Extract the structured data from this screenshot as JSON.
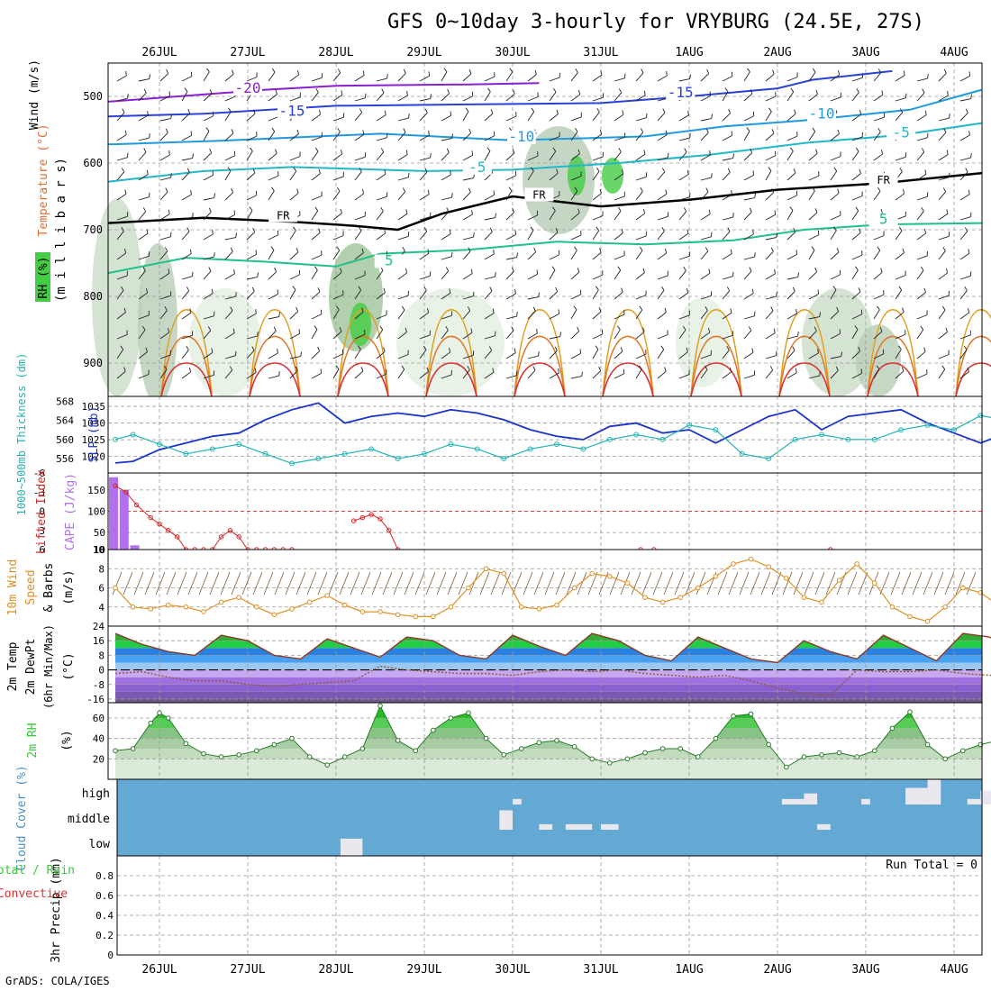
{
  "title": "GFS 0~10day 3-hourly for VRYBURG (24.5E, 27S)",
  "credit": "GrADS: COLA/IGES",
  "dates": [
    "26JUL",
    "27JUL",
    "28JUL",
    "29JUL",
    "30JUL",
    "31JUL",
    "1AUG",
    "2AUG",
    "3AUG",
    "4AUG"
  ],
  "colors": {
    "grid": "#9a9a9a",
    "slp": "#1a33cc",
    "thickness": "#22b3b3",
    "lifted": "#dd2222",
    "cape": "#b070f0",
    "wind10": "#e09020",
    "rh": "#33cc33",
    "cloud": "#64a8d4",
    "temp_warm": "#22aa22",
    "temp_cold": "#7040c0"
  },
  "chart_data": [
    {
      "panel": "upper-air",
      "type": "heatmap",
      "ylabel_parts": [
        "RH (%)",
        "Temperature (°C)",
        "Wind (m/s)"
      ],
      "ylabel2": "(m i l l i b a r s)",
      "yticks": [
        "500",
        "600",
        "700",
        "800",
        "900"
      ],
      "ylim": [
        450,
        950
      ],
      "isotherm_labels": [
        {
          "text": "-20",
          "x": 1.0,
          "p": 493
        },
        {
          "text": "-15",
          "x": 1.5,
          "p": 528
        },
        {
          "text": "-15",
          "x": 5.9,
          "p": 500
        },
        {
          "text": "-10",
          "x": 4.1,
          "p": 566
        },
        {
          "text": "-10",
          "x": 7.5,
          "p": 532
        },
        {
          "text": "-5",
          "x": 3.6,
          "p": 612
        },
        {
          "text": "-5",
          "x": 8.4,
          "p": 560
        },
        {
          "text": "FR",
          "x": 1.4,
          "p": 683
        },
        {
          "text": "FR",
          "x": 4.3,
          "p": 652
        },
        {
          "text": "FR",
          "x": 8.2,
          "p": 630
        },
        {
          "text": "5",
          "x": 2.6,
          "p": 752
        },
        {
          "text": "5",
          "x": 8.2,
          "p": 690
        }
      ],
      "isotherm_lines": [
        {
          "name": "-20",
          "color": "#8a1fcf",
          "x": [
            -0.6,
            1.2,
            2.0,
            3.5,
            4.3
          ],
          "p": [
            508,
            490,
            484,
            482,
            480
          ]
        },
        {
          "name": "-15",
          "color": "#2a40d8",
          "x": [
            -0.6,
            0.5,
            2.0,
            3.5,
            5.0,
            6.0,
            7.0,
            7.4,
            8.3
          ],
          "p": [
            530,
            526,
            514,
            512,
            510,
            500,
            488,
            475,
            462
          ]
        },
        {
          "name": "-10",
          "color": "#1f9ae0",
          "x": [
            -0.6,
            0.8,
            2.5,
            4.0,
            5.5,
            6.4,
            7.4,
            8.5,
            9.5
          ],
          "p": [
            572,
            566,
            556,
            566,
            560,
            545,
            535,
            520,
            490
          ]
        },
        {
          "name": "-5",
          "color": "#22b8c8",
          "x": [
            -0.6,
            0.5,
            1.5,
            3.0,
            4.0,
            5.2,
            6.2,
            7.3,
            8.4,
            9.5
          ],
          "p": [
            628,
            612,
            606,
            612,
            610,
            600,
            588,
            570,
            558,
            540
          ]
        },
        {
          "name": "FR",
          "color": "#000000",
          "x": [
            -0.6,
            0.5,
            1.5,
            2.2,
            2.7,
            3.2,
            4.0,
            5.0,
            6.0,
            7.0,
            8.2,
            9.5
          ],
          "p": [
            690,
            682,
            688,
            694,
            700,
            676,
            650,
            665,
            655,
            640,
            630,
            615
          ]
        },
        {
          "name": "5",
          "color": "#1fc08a",
          "x": [
            -0.6,
            0.3,
            1.2,
            2.0,
            2.5,
            3.5,
            4.5,
            5.5,
            6.5,
            7.3,
            8.2,
            9.5
          ],
          "p": [
            765,
            742,
            748,
            755,
            736,
            730,
            718,
            722,
            716,
            700,
            692,
            690
          ]
        }
      ]
    },
    {
      "panel": "slp-thickness",
      "type": "line",
      "ylabel": "SLP (mb)",
      "ylabel2": "1000~500mb Thickness (dm)",
      "yticks_left": [
        "556",
        "560",
        "564",
        "568"
      ],
      "yticks_right": [
        "1020",
        "1025",
        "1030",
        "1035"
      ],
      "series": [
        {
          "name": "SLP (mb)",
          "x": [
            -0.5,
            -0.3,
            0.0,
            0.3,
            0.6,
            0.9,
            1.2,
            1.5,
            1.8,
            2.1,
            2.4,
            2.7,
            3.0,
            3.3,
            3.6,
            3.9,
            4.2,
            4.5,
            4.8,
            5.1,
            5.4,
            5.7,
            6.0,
            6.3,
            6.6,
            6.9,
            7.2,
            7.5,
            7.8,
            8.1,
            8.4,
            8.7,
            9.0,
            9.3,
            9.6,
            9.9
          ],
          "values": [
            1018,
            1018.5,
            1022,
            1024,
            1026,
            1027,
            1031,
            1034,
            1036,
            1030,
            1032,
            1033,
            1032,
            1034,
            1033,
            1031,
            1028,
            1026,
            1025,
            1029,
            1030,
            1027,
            1028,
            1024,
            1028,
            1032,
            1034,
            1028,
            1032,
            1033,
            1034,
            1030,
            1027,
            1024,
            1027,
            1028
          ]
        },
        {
          "name": "1000~500mb Thickness (dm)",
          "x": [
            -0.5,
            -0.3,
            0.0,
            0.3,
            0.6,
            0.9,
            1.2,
            1.5,
            1.8,
            2.1,
            2.4,
            2.7,
            3.0,
            3.3,
            3.6,
            3.9,
            4.2,
            4.5,
            4.8,
            5.1,
            5.4,
            5.7,
            6.0,
            6.3,
            6.6,
            6.9,
            7.2,
            7.5,
            7.8,
            8.1,
            8.4,
            8.7,
            9.0,
            9.3,
            9.6,
            9.9
          ],
          "values": [
            560,
            561,
            559,
            557,
            558,
            559,
            557,
            555,
            556,
            557,
            558,
            556,
            557,
            559,
            558,
            556,
            558,
            559,
            558,
            560,
            561,
            560,
            563,
            562,
            557,
            556,
            560,
            561,
            560,
            560,
            562,
            563,
            562,
            565,
            564,
            564
          ]
        }
      ]
    },
    {
      "panel": "lifted-cape",
      "type": "bar",
      "ylabel": "Lifted Index",
      "ylabel2": "CAPE (J/kg)",
      "yticks_left": [
        "-6",
        "-3",
        "0",
        "3",
        "6"
      ],
      "yticks_right": [
        "150",
        "100",
        "50",
        "10"
      ],
      "series": [
        {
          "name": "CAPE (J/kg)",
          "x": [
            -0.52,
            -0.4,
            -0.28
          ],
          "values": [
            180,
            150,
            20
          ]
        },
        {
          "name": "Lifted Index",
          "x": [
            -0.5,
            -0.38,
            -0.26,
            -0.1,
            0.0,
            0.1,
            0.2,
            0.3,
            0.4,
            0.5,
            0.6,
            0.7,
            0.8,
            0.9,
            1.0,
            1.1,
            1.2,
            1.3,
            1.4,
            1.5
          ],
          "values": [
            -4,
            -3,
            -1,
            1,
            2,
            3,
            4,
            6,
            6,
            6,
            6,
            4,
            3,
            4,
            6,
            6,
            6,
            6,
            6,
            6
          ]
        },
        {
          "name": "Lifted Index 28JUL",
          "x": [
            2.2,
            2.3,
            2.4,
            2.5,
            2.6,
            2.7
          ],
          "values": [
            1.5,
            1.0,
            0.5,
            1.2,
            3,
            6
          ]
        },
        {
          "name": "Lifted Index 31JUL",
          "x": [
            5.45,
            5.6
          ],
          "values": [
            6,
            6
          ]
        },
        {
          "name": "Lifted Index 2AUG",
          "x": [
            7.6
          ],
          "values": [
            6
          ]
        }
      ]
    },
    {
      "panel": "wind10m",
      "type": "line",
      "ylabel": "10m Wind Speed & Barbs (m/s)",
      "yticks": [
        "4",
        "6",
        "8",
        "10"
      ],
      "ylim": [
        2,
        10
      ],
      "series": [
        {
          "name": "Speed",
          "x": [
            -0.5,
            -0.3,
            -0.1,
            0.1,
            0.3,
            0.5,
            0.7,
            0.9,
            1.1,
            1.3,
            1.5,
            1.7,
            1.9,
            2.1,
            2.3,
            2.5,
            2.7,
            2.9,
            3.1,
            3.3,
            3.5,
            3.7,
            3.9,
            4.1,
            4.3,
            4.5,
            4.7,
            4.9,
            5.1,
            5.3,
            5.5,
            5.7,
            5.9,
            6.1,
            6.3,
            6.5,
            6.7,
            6.9,
            7.1,
            7.3,
            7.5,
            7.7,
            7.9,
            8.1,
            8.3,
            8.5,
            8.7,
            8.9,
            9.1,
            9.3,
            9.5,
            9.7,
            9.9
          ],
          "values": [
            6,
            4,
            3.8,
            4.2,
            4,
            3.5,
            4.5,
            5,
            4,
            3.2,
            3.8,
            4.5,
            5.2,
            4.2,
            3.5,
            3.5,
            3.2,
            3.0,
            3.0,
            4,
            6.0,
            8.0,
            7.5,
            4,
            3.8,
            4.2,
            6,
            7.5,
            7.2,
            6.5,
            5,
            4.5,
            5,
            6,
            7.2,
            8.5,
            9,
            8.2,
            7,
            5,
            4.5,
            6.8,
            8.5,
            6.5,
            4,
            3,
            2.5,
            4,
            6,
            5.5,
            4.2,
            3.5,
            4
          ]
        }
      ]
    },
    {
      "panel": "temp2m",
      "type": "area",
      "ylabel": "2m Temp 2m DewPt (6hr Min/Max) (°C)",
      "yticks": [
        "-16",
        "-8",
        "0",
        "8",
        "16",
        "24"
      ],
      "ylim": [
        -18,
        24
      ],
      "series": [
        {
          "name": "2m Temp",
          "x": [
            -0.5,
            -0.2,
            0.1,
            0.4,
            0.7,
            1.0,
            1.3,
            1.6,
            1.9,
            2.2,
            2.5,
            2.8,
            3.1,
            3.4,
            3.7,
            4.0,
            4.3,
            4.6,
            4.9,
            5.2,
            5.5,
            5.8,
            6.1,
            6.4,
            6.7,
            7.0,
            7.3,
            7.6,
            7.9,
            8.2,
            8.5,
            8.8,
            9.1,
            9.4,
            9.7,
            9.95
          ],
          "values": [
            20,
            14,
            10,
            8,
            19,
            16,
            8,
            6,
            17,
            12,
            7,
            18,
            16,
            8,
            6,
            19,
            13,
            8,
            20,
            16,
            8,
            5,
            18,
            12,
            6,
            4,
            16,
            10,
            6,
            19,
            12,
            5,
            20,
            18,
            10,
            9
          ]
        },
        {
          "name": "2m DewPt",
          "x": [
            -0.5,
            -0.2,
            0.1,
            0.4,
            0.7,
            1.0,
            1.3,
            1.6,
            1.9,
            2.2,
            2.5,
            2.8,
            3.1,
            3.4,
            3.7,
            4.0,
            4.3,
            4.6,
            4.9,
            5.2,
            5.5,
            5.8,
            6.1,
            6.4,
            6.7,
            7.0,
            7.3,
            7.6,
            7.9,
            8.2,
            8.5,
            8.8,
            9.1,
            9.4,
            9.7,
            9.95
          ],
          "values": [
            -2,
            -1,
            -4,
            -6,
            -6,
            -8,
            -9,
            -8,
            -7,
            -6,
            2,
            0,
            -1,
            -2,
            -2,
            -3,
            -1,
            0,
            -1,
            0,
            -2,
            -3,
            -4,
            -3,
            -6,
            -10,
            -13,
            -14,
            0,
            -1,
            -1,
            0,
            -2,
            -3,
            -3,
            -3
          ]
        }
      ]
    },
    {
      "panel": "rh2m",
      "type": "area",
      "ylabel": "2m RH (%)",
      "yticks": [
        "20",
        "40",
        "60"
      ],
      "ylim": [
        0,
        75
      ],
      "series": [
        {
          "name": "2m RH",
          "x": [
            -0.5,
            -0.3,
            -0.1,
            0.0,
            0.1,
            0.3,
            0.5,
            0.7,
            0.9,
            1.1,
            1.3,
            1.5,
            1.7,
            1.9,
            2.1,
            2.3,
            2.5,
            2.7,
            2.9,
            3.1,
            3.3,
            3.5,
            3.7,
            3.9,
            4.1,
            4.3,
            4.5,
            4.7,
            4.9,
            5.1,
            5.3,
            5.5,
            5.7,
            5.9,
            6.1,
            6.3,
            6.5,
            6.7,
            6.9,
            7.1,
            7.3,
            7.5,
            7.7,
            7.9,
            8.1,
            8.3,
            8.5,
            8.7,
            8.9,
            9.1,
            9.3,
            9.5,
            9.7,
            9.9
          ],
          "values": [
            28,
            30,
            55,
            65,
            60,
            35,
            25,
            22,
            24,
            28,
            34,
            40,
            22,
            14,
            22,
            30,
            72,
            38,
            28,
            48,
            60,
            65,
            40,
            24,
            30,
            36,
            38,
            32,
            20,
            16,
            20,
            26,
            30,
            30,
            22,
            40,
            62,
            64,
            34,
            12,
            22,
            24,
            26,
            22,
            28,
            50,
            66,
            34,
            20,
            28,
            34,
            38,
            40,
            42
          ]
        }
      ]
    },
    {
      "panel": "cloud",
      "type": "bar",
      "ylabel": "Cloud Cover (%)",
      "categories": [
        "high",
        "middle",
        "low"
      ],
      "blocks": [
        {
          "level": "low",
          "x": [
            2.05,
            2.3
          ],
          "intensity": 0.3
        },
        {
          "level": "middle",
          "x": [
            3.85,
            4.0
          ],
          "intensity": 0.35
        },
        {
          "level": "high",
          "x": [
            4.0,
            4.1
          ],
          "intensity": 0.1
        },
        {
          "level": "middle",
          "x": [
            4.3,
            4.45
          ],
          "intensity": 0.1
        },
        {
          "level": "middle",
          "x": [
            4.6,
            4.9
          ],
          "intensity": 0.1
        },
        {
          "level": "middle",
          "x": [
            5.0,
            5.2
          ],
          "intensity": 0.1
        },
        {
          "level": "high",
          "x": [
            7.05,
            7.3
          ],
          "intensity": 0.1
        },
        {
          "level": "high",
          "x": [
            7.3,
            7.45
          ],
          "intensity": 0.2
        },
        {
          "level": "middle",
          "x": [
            7.45,
            7.6
          ],
          "intensity": 0.1
        },
        {
          "level": "high",
          "x": [
            7.95,
            8.05
          ],
          "intensity": 0.1
        },
        {
          "level": "high",
          "x": [
            8.45,
            8.7
          ],
          "intensity": 0.3
        },
        {
          "level": "high",
          "x": [
            8.7,
            8.85
          ],
          "intensity": 0.5
        },
        {
          "level": "high",
          "x": [
            9.15,
            9.3
          ],
          "intensity": 0.1
        },
        {
          "level": "high",
          "x": [
            9.3,
            9.5
          ],
          "intensity": 0.25
        }
      ]
    },
    {
      "panel": "precip",
      "type": "bar",
      "ylabel": "3hr Precip (mm)",
      "ylabel_left": "Total / Rain",
      "ylabel_left2": "Convective",
      "annotation": "Run Total = 0",
      "yticks": [
        "0",
        "0.2",
        "0.4",
        "0.6",
        "0.8"
      ],
      "ylim": [
        0,
        1.0
      ],
      "values": []
    }
  ]
}
